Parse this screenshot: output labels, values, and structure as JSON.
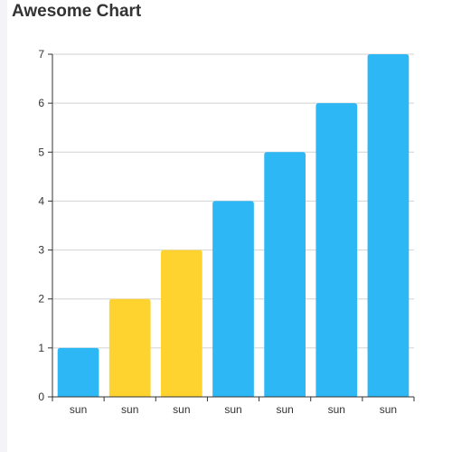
{
  "chart_data": {
    "type": "bar",
    "title": "Awesome Chart",
    "categories": [
      "sun",
      "sun",
      "sun",
      "sun",
      "sun",
      "sun",
      "sun"
    ],
    "values": [
      1,
      2,
      3,
      4,
      5,
      6,
      7
    ],
    "bar_colors": [
      "#2db7f5",
      "#fed330",
      "#fed330",
      "#2db7f5",
      "#2db7f5",
      "#2db7f5",
      "#2db7f5"
    ],
    "xlabel": "",
    "ylabel": "",
    "ylim": [
      0,
      7
    ],
    "yticks": [
      "0",
      "1",
      "2",
      "3",
      "4",
      "5",
      "6",
      "7"
    ],
    "grid": true,
    "legend": "none"
  }
}
